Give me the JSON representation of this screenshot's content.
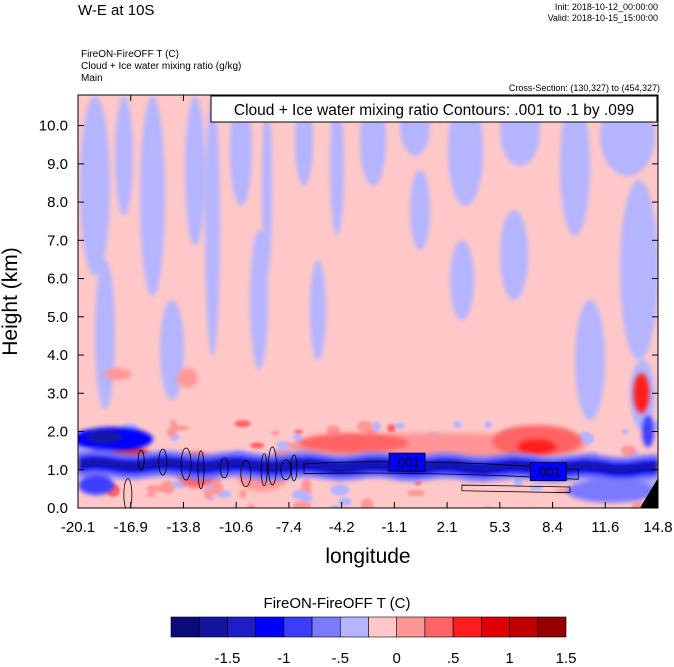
{
  "header": {
    "title": "W-E at 10S",
    "init": "Init: 2018-10-12_00:00:00",
    "valid": "Valid: 2018-10-15_15:00:00",
    "field_line1": "FireON-FireOFF T   (C)",
    "field_line2": "Cloud + Ice water mixing ratio   (g/kg)",
    "field_line3": "Main",
    "cross_section": "Cross-Section: (130,327) to (454,327)"
  },
  "chart_data": {
    "type": "heatmap",
    "title": "W-E at 10S",
    "xlabel": "longitude",
    "ylabel": "Height (km)",
    "x_ticks": [
      "-20.1",
      "-16.9",
      "-13.8",
      "-10.6",
      "-7.4",
      "-4.2",
      "-1.1",
      "2.1",
      "5.3",
      "8.4",
      "11.6",
      "14.8"
    ],
    "y_ticks": [
      "0.0",
      "1.0",
      "2.0",
      "3.0",
      "4.0",
      "5.0",
      "6.0",
      "7.0",
      "8.0",
      "9.0",
      "10.0"
    ],
    "xlim": [
      -20.1,
      14.8
    ],
    "ylim": [
      0.0,
      10.8
    ],
    "contour_info": "Cloud + Ice water mixing ratio Contours: .001 to .1 by .099",
    "contour_labels": [
      {
        "text": ".001",
        "x": -0.3,
        "y": 1.2
      },
      {
        "text": ".001",
        "x": 8.2,
        "y": 0.95
      }
    ],
    "contour_levels": [
      0.001,
      0.1
    ],
    "shaded_field": {
      "name": "FireON-FireOFF T",
      "units": "C",
      "description_bands": [
        {
          "feature": "warm anomaly above blue band",
          "y_range": [
            1.3,
            2.0
          ],
          "x_range": [
            -6,
            10
          ]
        },
        {
          "feature": "strong cool anomaly band",
          "y_range": [
            0.7,
            1.4
          ],
          "x_range": [
            -20.1,
            14.8
          ]
        },
        {
          "feature": "cool anomaly near surface west",
          "y_range": [
            1.5,
            2.1
          ],
          "x_range": [
            -20.1,
            -15
          ]
        }
      ]
    },
    "colorbar": {
      "title": "FireON-FireOFF T  (C)",
      "tick_labels": [
        "-1.5",
        "-1",
        "-.5",
        "0",
        ".5",
        "1",
        "1.5"
      ],
      "levels": [
        -1.75,
        -1.5,
        -1.25,
        -1,
        -0.75,
        -0.5,
        -0.25,
        0,
        0.25,
        0.5,
        0.75,
        1,
        1.25,
        1.5,
        1.75
      ],
      "colors": [
        "#0a0a78",
        "#1414a0",
        "#1e1ec8",
        "#0000ff",
        "#3c3cff",
        "#7a7aff",
        "#b4b4ff",
        "#ffc8c8",
        "#ff9696",
        "#ff6464",
        "#ff1e1e",
        "#e00000",
        "#c00000",
        "#960000"
      ]
    },
    "grid": false,
    "legend": "bottom"
  },
  "colors": {
    "neutral_warm": "#ffc8c8",
    "neutral_cool": "#b4b4ff",
    "contour": "#000000"
  }
}
